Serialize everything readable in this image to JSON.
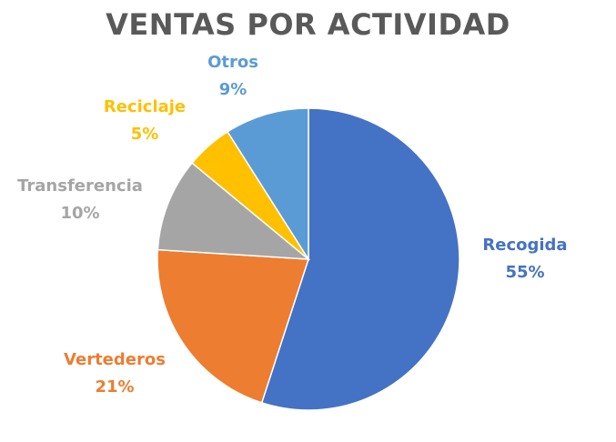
{
  "chart_data": {
    "type": "pie",
    "title": "VENTAS POR ACTIVIDAD",
    "slices": [
      {
        "label": "Recogida",
        "value": 55,
        "value_label": "55%",
        "color": "#4472C4"
      },
      {
        "label": "Vertederos",
        "value": 21,
        "value_label": "21%",
        "color": "#ED7D31"
      },
      {
        "label": "Transferencia",
        "value": 10,
        "value_label": "10%",
        "color": "#A5A5A5"
      },
      {
        "label": "Reciclaje",
        "value": 5,
        "value_label": "5%",
        "color": "#FFC000"
      },
      {
        "label": "Otros",
        "value": 9,
        "value_label": "9%",
        "color": "#5B9BD5"
      }
    ],
    "start_angle": "12 o'clock",
    "direction": "clockwise",
    "legend": "none",
    "data_labels": "outside, category name and percentage"
  }
}
